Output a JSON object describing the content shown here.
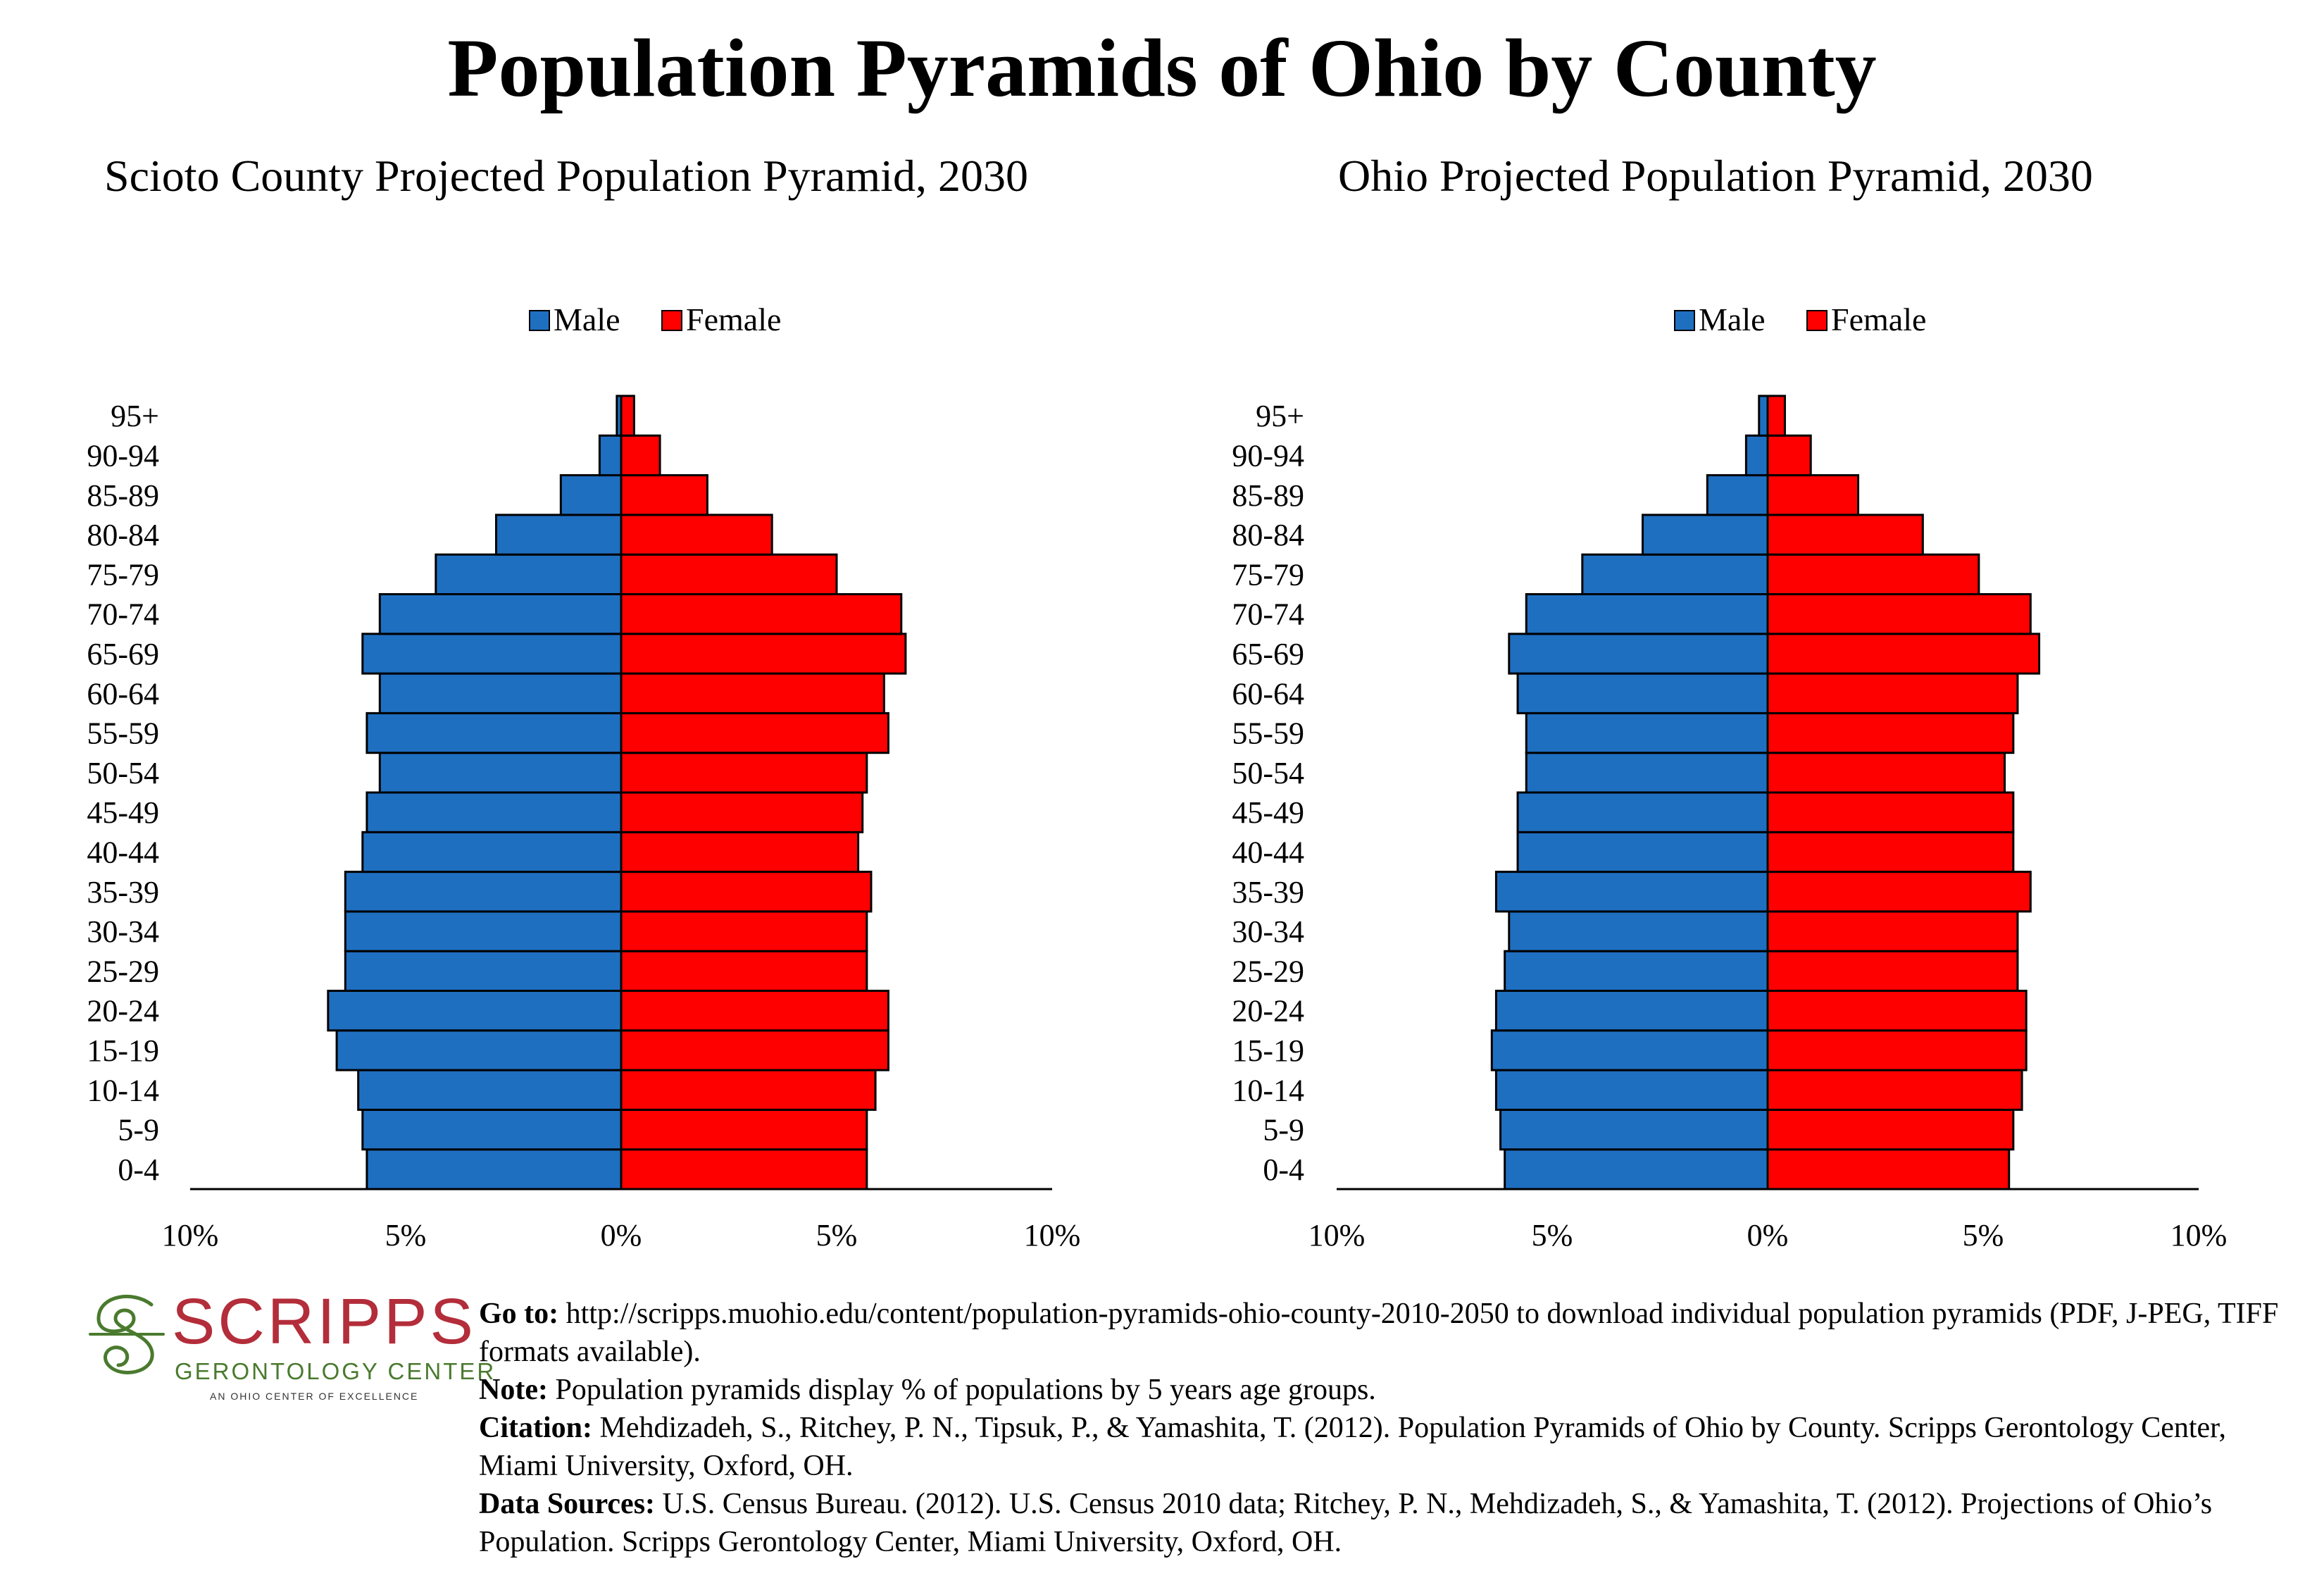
{
  "title": "Population Pyramids of Ohio by County",
  "colors": {
    "male": "#1f6fc1",
    "female": "#ff0000",
    "axis": "#000000",
    "logo_red": "#b32d3a",
    "logo_green": "#4a7a2e"
  },
  "legend": {
    "male": "Male",
    "female": "Female"
  },
  "chart_data": [
    {
      "type": "bar",
      "orientation": "horizontal-pyramid",
      "title": "Scioto County Projected Population Pyramid, 2030",
      "categories": [
        "0-4",
        "5-9",
        "10-14",
        "15-19",
        "20-24",
        "25-29",
        "30-34",
        "35-39",
        "40-44",
        "45-49",
        "50-54",
        "55-59",
        "60-64",
        "65-69",
        "70-74",
        "75-79",
        "80-84",
        "85-89",
        "90-94",
        "95+"
      ],
      "series": [
        {
          "name": "Male",
          "values": [
            5.9,
            6.0,
            6.1,
            6.6,
            6.8,
            6.4,
            6.4,
            6.4,
            6.0,
            5.9,
            5.6,
            5.9,
            5.6,
            6.0,
            5.6,
            4.3,
            2.9,
            1.4,
            0.5,
            0.1
          ]
        },
        {
          "name": "Female",
          "values": [
            5.7,
            5.7,
            5.9,
            6.2,
            6.2,
            5.7,
            5.7,
            5.8,
            5.5,
            5.6,
            5.7,
            6.2,
            6.1,
            6.6,
            6.5,
            5.0,
            3.5,
            2.0,
            0.9,
            0.3
          ]
        }
      ],
      "xlim": [
        -10,
        10
      ],
      "tick_labels": [
        "10%",
        "5%",
        "0%",
        "5%",
        "10%"
      ],
      "legend_position": "top-center"
    },
    {
      "type": "bar",
      "orientation": "horizontal-pyramid",
      "title": "Ohio Projected Population Pyramid, 2030",
      "categories": [
        "0-4",
        "5-9",
        "10-14",
        "15-19",
        "20-24",
        "25-29",
        "30-34",
        "35-39",
        "40-44",
        "45-49",
        "50-54",
        "55-59",
        "60-64",
        "65-69",
        "70-74",
        "75-79",
        "80-84",
        "85-89",
        "90-94",
        "95+"
      ],
      "series": [
        {
          "name": "Male",
          "values": [
            6.1,
            6.2,
            6.3,
            6.4,
            6.3,
            6.1,
            6.0,
            6.3,
            5.8,
            5.8,
            5.6,
            5.6,
            5.8,
            6.0,
            5.6,
            4.3,
            2.9,
            1.4,
            0.5,
            0.2
          ]
        },
        {
          "name": "Female",
          "values": [
            5.6,
            5.7,
            5.9,
            6.0,
            6.0,
            5.8,
            5.8,
            6.1,
            5.7,
            5.7,
            5.5,
            5.7,
            5.8,
            6.3,
            6.1,
            4.9,
            3.6,
            2.1,
            1.0,
            0.4
          ]
        }
      ],
      "xlim": [
        -10,
        10
      ],
      "tick_labels": [
        "10%",
        "5%",
        "0%",
        "5%",
        "10%"
      ],
      "legend_position": "top-center"
    }
  ],
  "logo": {
    "word": "SCRIPPS",
    "sub": "GERONTOLOGY CENTER",
    "tag": "AN OHIO CENTER OF EXCELLENCE"
  },
  "notes": {
    "goto_label": "Go to:",
    "goto_text": "http://scripps.muohio.edu/content/population-pyramids-ohio-county-2010-2050 to download individual population pyramids (PDF, J-PEG, TIFF formats available).",
    "note_label": "Note:",
    "note_text": "Population pyramids display % of populations by 5 years age groups.",
    "citation_label": "Citation:",
    "citation_text": "Mehdizadeh, S., Ritchey, P. N., Tipsuk, P., & Yamashita, T. (2012). Population Pyramids of Ohio by County. Scripps Gerontology Center, Miami University, Oxford, OH.",
    "sources_label": "Data Sources:",
    "sources_text": "U.S. Census Bureau. (2012). U.S. Census 2010 data; Ritchey, P. N., Mehdizadeh, S., & Yamashita, T. (2012). Projections of Ohio’s Population. Scripps Gerontology Center, Miami University, Oxford, OH."
  }
}
